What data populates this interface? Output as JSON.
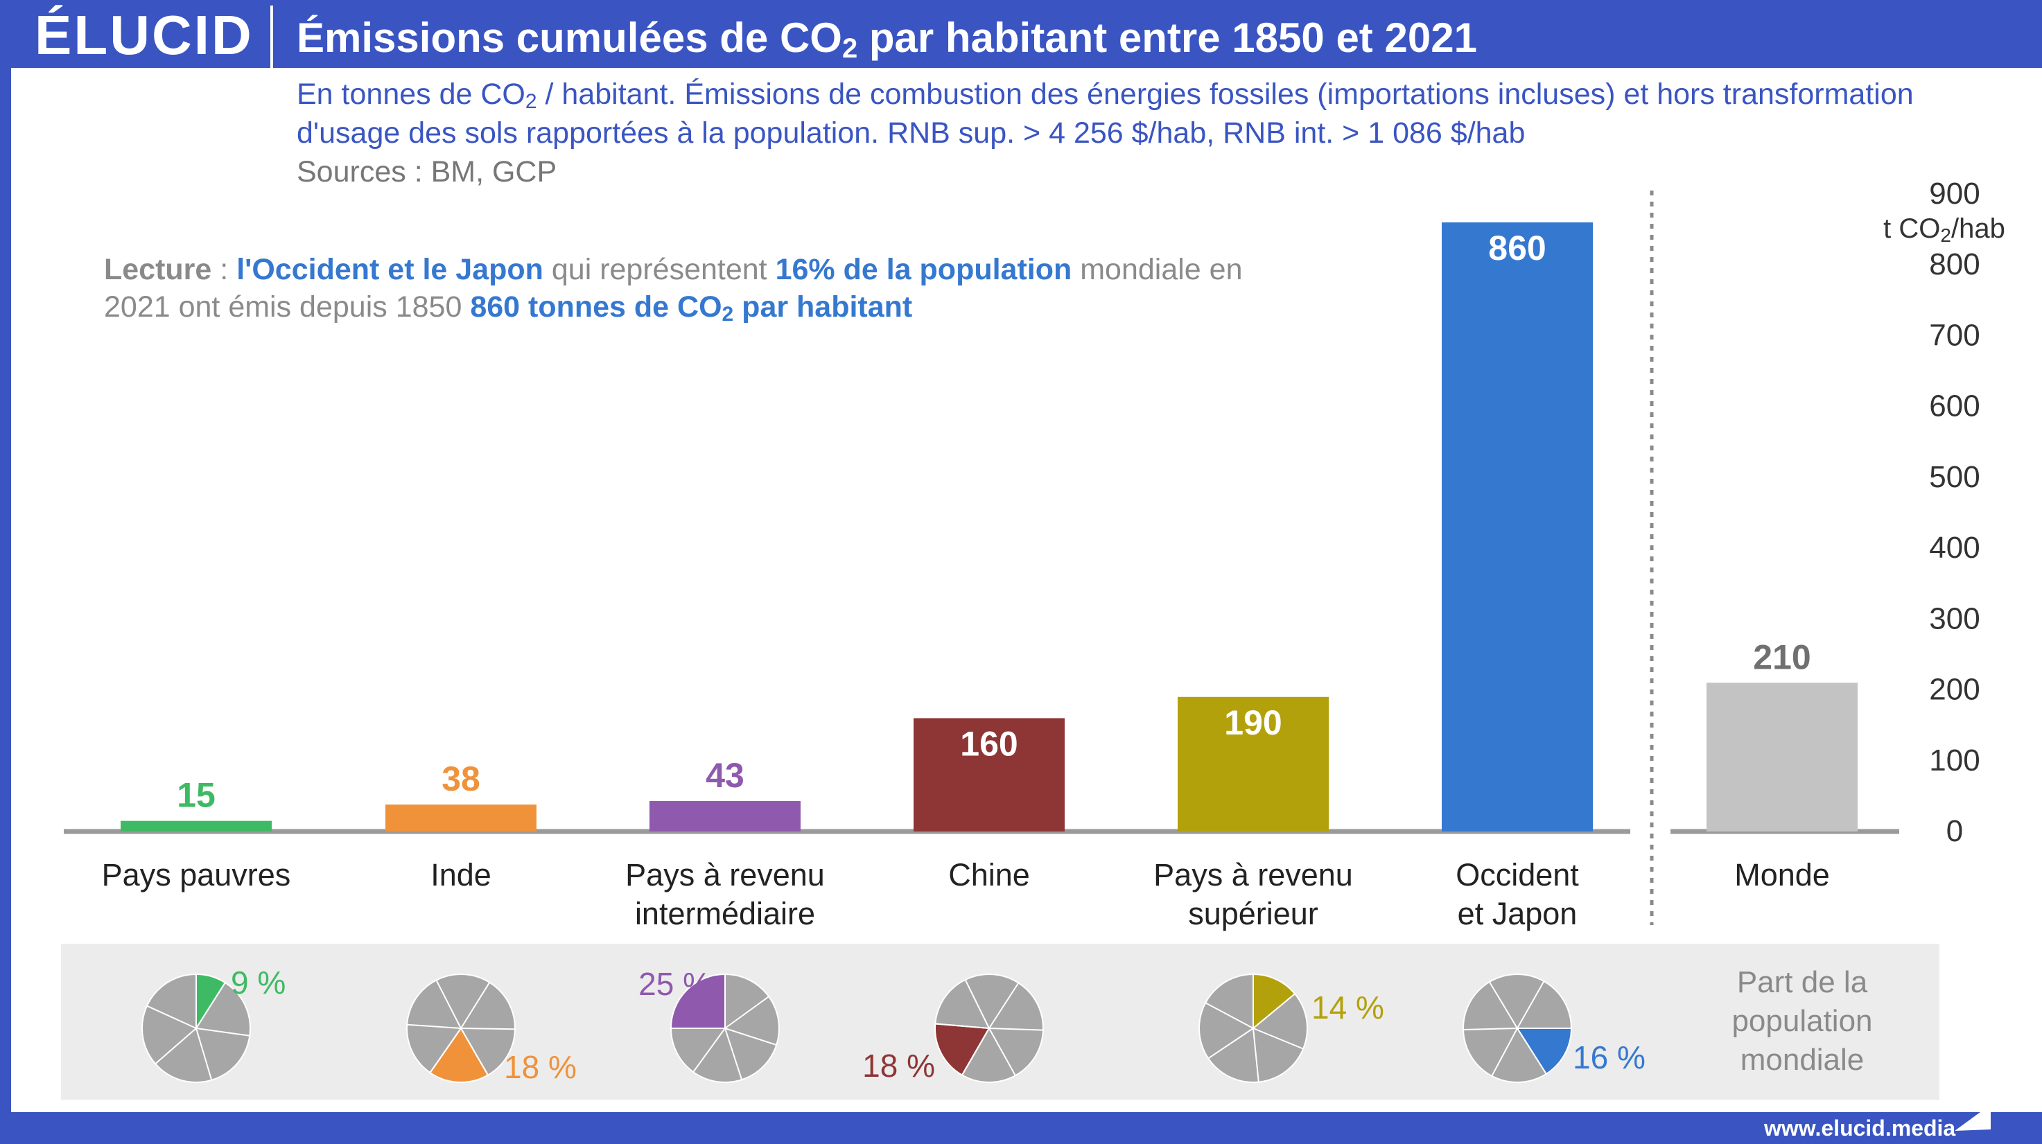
{
  "header": {
    "logo": "ÉLUCID",
    "title_pre": "Émissions cumulées de CO",
    "title_sub": "2",
    "title_post": " par habitant entre 1850 et 2021"
  },
  "subtitle": {
    "part1": "En tonnes de CO",
    "sub": "2",
    "part2": " / habitant. Émissions de combustion des énergies fossiles (importations incluses) et hors transformation d'usage des sols rapportées à la population. RNB sup. > 4 256 $/hab, RNB int. > 1 086 $/hab"
  },
  "sources": "Sources : BM, GCP",
  "reading": {
    "label": "Lecture",
    "sep": " : ",
    "highlight1": "l'Occident et le Japon",
    "text1": " qui représentent ",
    "highlight2": "16% de la population",
    "text2": " mondiale en 2021 ont émis depuis 1850 ",
    "highlight3_pre": "860 tonnes de CO",
    "highlight3_sub": "2",
    "highlight3_post": " par habitant"
  },
  "unit": {
    "pre": "t CO",
    "sub": "2",
    "post": "/hab"
  },
  "pie_caption": "Part de la population mondiale",
  "website": "www.elucid.media",
  "colors": {
    "frame": "#3a55c2",
    "axis": "#9a9a9a",
    "pie_gray": "#a6a6a6"
  },
  "chart_data": {
    "type": "bar",
    "categories": [
      "Pays pauvres",
      "Inde",
      "Pays à revenu intermédiaire",
      "Chine",
      "Pays à revenu supérieur",
      "Occident et Japon",
      "Monde"
    ],
    "category_lines": [
      [
        "Pays pauvres"
      ],
      [
        "Inde"
      ],
      [
        "Pays à revenu",
        "intermédiaire"
      ],
      [
        "Chine"
      ],
      [
        "Pays à revenu",
        "supérieur"
      ],
      [
        "Occident",
        "et Japon"
      ],
      [
        "Monde"
      ]
    ],
    "values": [
      15,
      38,
      43,
      160,
      190,
      860,
      210
    ],
    "value_labels": [
      "15",
      "38",
      "43",
      "160",
      "190",
      "860",
      "210"
    ],
    "colors": [
      "#3fba64",
      "#f0923a",
      "#8f59ad",
      "#8e3535",
      "#b3a10c",
      "#3578d0",
      "#c3c3c3"
    ],
    "label_inside": [
      false,
      false,
      false,
      true,
      true,
      true,
      false
    ],
    "ylim": [
      0,
      900
    ],
    "yticks": [
      0,
      100,
      200,
      300,
      400,
      500,
      600,
      700,
      800,
      900
    ],
    "ylabel": "t CO2/hab",
    "population_share": {
      "values_pct": [
        9,
        18,
        25,
        18,
        14,
        16
      ],
      "labels": [
        "9 %",
        "18 %",
        "25 %",
        "18 %",
        "14 %",
        "16 %"
      ],
      "label_side": [
        "right-top",
        "right-bottom",
        "left-top",
        "left-bottom",
        "right-top",
        "right-bottom"
      ]
    }
  }
}
